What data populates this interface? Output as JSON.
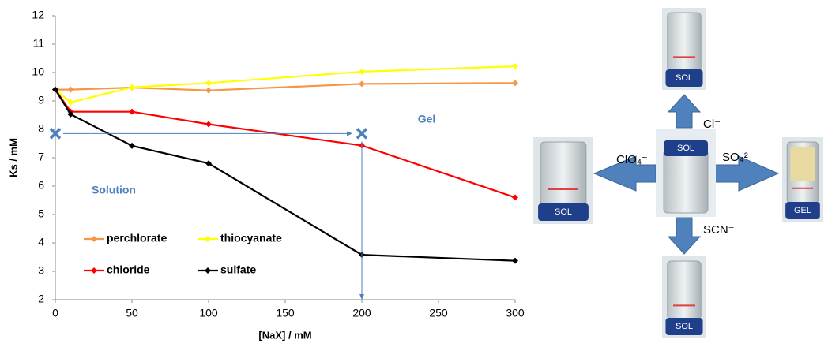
{
  "chart_data": {
    "type": "line",
    "x_label": "[NaX] / mM",
    "y_label": "Ks / mM",
    "x": [
      0,
      10,
      50,
      100,
      200,
      300
    ],
    "series": [
      {
        "name": "perchlorate",
        "color": "#f79646",
        "values": [
          9.4,
          9.4,
          9.47,
          9.37,
          9.6,
          9.63
        ]
      },
      {
        "name": "thiocyanate",
        "color": "#ffff00",
        "values": [
          9.4,
          8.95,
          9.48,
          9.63,
          10.03,
          10.22
        ]
      },
      {
        "name": "chloride",
        "color": "#ff0000",
        "values": [
          9.4,
          8.62,
          8.62,
          8.18,
          7.43,
          5.6
        ]
      },
      {
        "name": "sulfate",
        "color": "#000000",
        "values": [
          9.4,
          8.53,
          7.42,
          6.8,
          3.58,
          3.37
        ]
      }
    ],
    "xlim": [
      0,
      300
    ],
    "xticks": [
      0,
      50,
      100,
      150,
      200,
      250,
      300
    ],
    "ylim": [
      2,
      12
    ],
    "yticks": [
      2,
      3,
      4,
      5,
      6,
      7,
      8,
      9,
      10,
      11,
      12
    ],
    "grid": false,
    "annotations": {
      "gel": "Gel",
      "solution": "Solution",
      "color": "#4f81bd",
      "markers": [
        {
          "x": 0,
          "y": 7.85
        },
        {
          "x": 200,
          "y": 7.85
        }
      ]
    }
  },
  "photos": {
    "center": "SOL",
    "top": "SOL",
    "left": "SOL",
    "right": "GEL",
    "bottom": "SOL"
  },
  "arrows": {
    "top": "Cl⁻",
    "left": "ClO₄⁻",
    "right": "SO₄²⁻",
    "bottom": "SCN⁻"
  }
}
